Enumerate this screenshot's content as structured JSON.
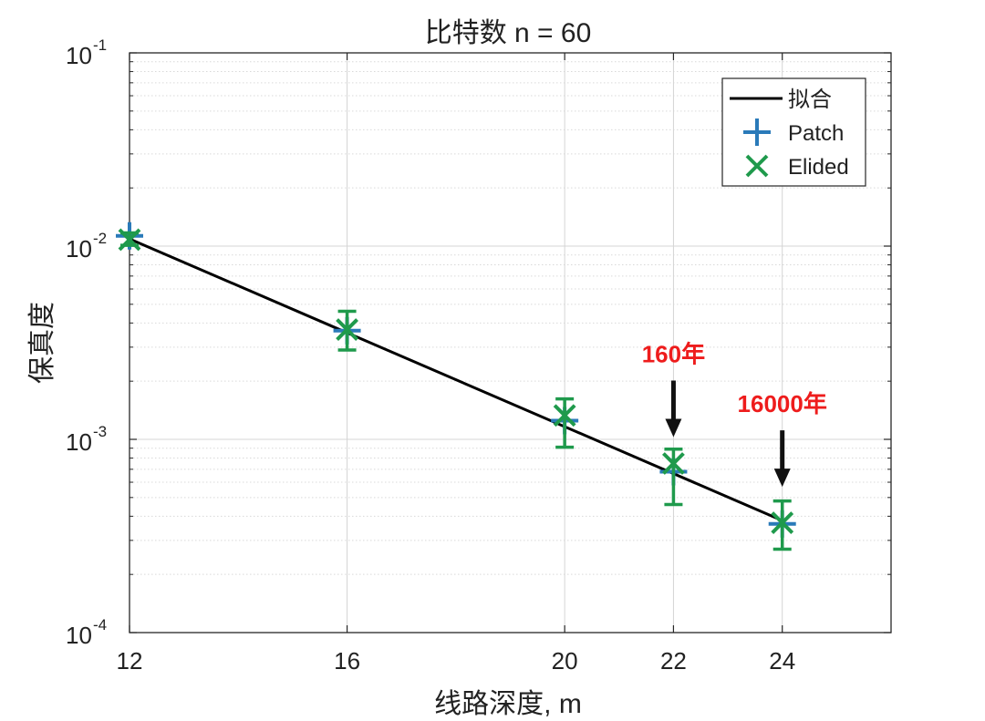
{
  "chart_data": {
    "type": "line",
    "title": "比特数 n = 60",
    "xlabel": "线路深度, m",
    "ylabel": "保真度",
    "xlim": [
      12,
      26
    ],
    "ylim": [
      0.0001,
      0.1
    ],
    "yscale": "log",
    "grid": true,
    "x_ticks": [
      12,
      16,
      20,
      22,
      24
    ],
    "x_tick_labels": [
      "12",
      "16",
      "20",
      "22",
      "24"
    ],
    "y_ticks": [
      0.0001,
      0.001,
      0.01,
      0.1
    ],
    "y_tick_labels": [
      {
        "base": "10",
        "exp": "-4"
      },
      {
        "base": "10",
        "exp": "-3"
      },
      {
        "base": "10",
        "exp": "-2"
      },
      {
        "base": "10",
        "exp": "-1"
      }
    ],
    "legend_position": "top-right",
    "series": [
      {
        "name": "拟合",
        "kind": "line",
        "color": "#000000",
        "x": [
          12,
          24
        ],
        "y": [
          0.0109,
          0.00038
        ]
      },
      {
        "name": "Patch",
        "kind": "marker-plus",
        "color": "#2a7ab9",
        "x": [
          12,
          16,
          20,
          22,
          24
        ],
        "y": [
          0.0113,
          0.00365,
          0.00125,
          0.00068,
          0.000365
        ]
      },
      {
        "name": "Elided",
        "kind": "marker-x",
        "color": "#1f9a4c",
        "x": [
          12,
          16,
          20,
          22,
          24
        ],
        "y": [
          0.0108,
          0.0037,
          0.00133,
          0.00075,
          0.00037
        ],
        "err_low": [
          0.0101,
          0.0029,
          0.00091,
          0.00046,
          0.00027
        ],
        "err_high": [
          0.0117,
          0.0046,
          0.00162,
          0.00089,
          0.00048
        ]
      }
    ],
    "annotations": [
      {
        "text": "160年",
        "x": 22,
        "arrow_to_y": 0.00105
      },
      {
        "text": "16000年",
        "x": 24,
        "arrow_to_y": 0.00058
      }
    ]
  }
}
